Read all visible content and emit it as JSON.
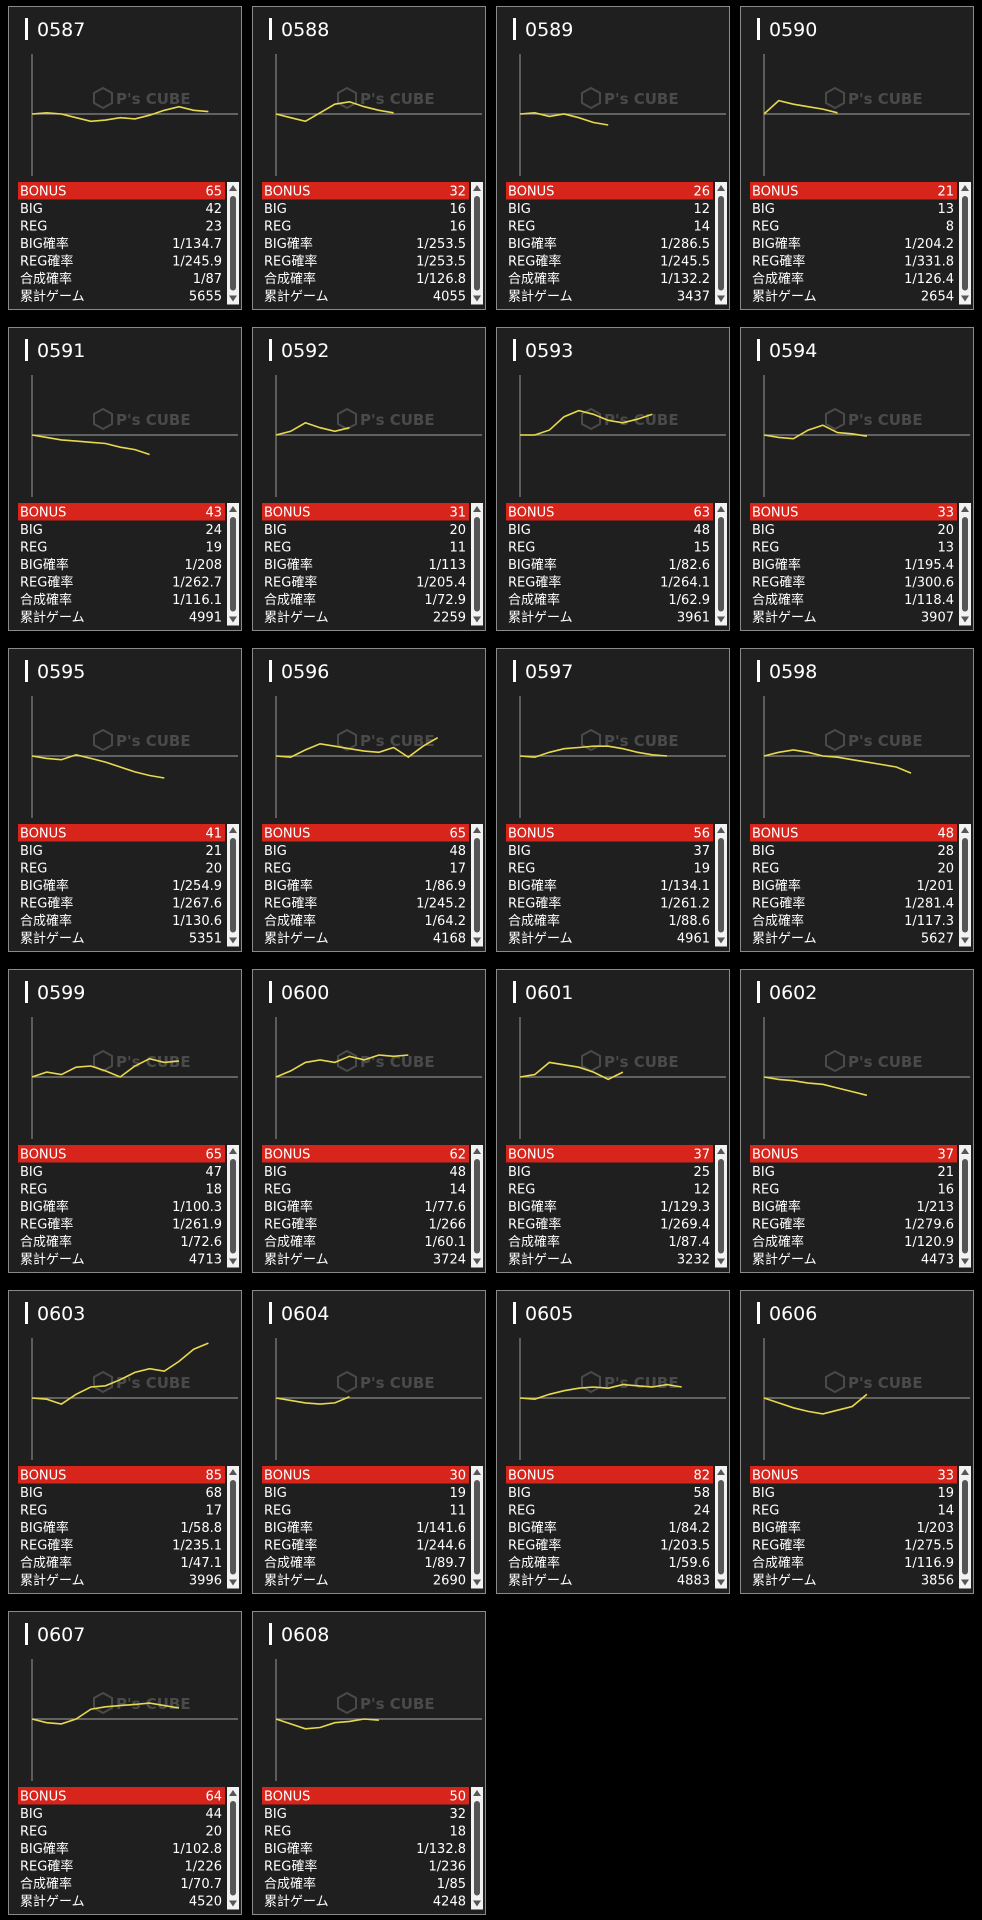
{
  "watermark": "P's CUBE",
  "row_labels": [
    "BONUS",
    "BIG",
    "REG",
    "BIG確率",
    "REG確率",
    "合成確率",
    "累計ゲーム"
  ],
  "machines": [
    {
      "id": "0587",
      "bonus": 65,
      "big": 42,
      "reg": 23,
      "big_rate": "1/134.7",
      "reg_rate": "1/245.9",
      "combined_rate": "1/87",
      "games": 5655,
      "graph": [
        0,
        1,
        0,
        -3,
        -6,
        -5,
        -3,
        -4,
        -1,
        3,
        6,
        3,
        2
      ]
    },
    {
      "id": "0588",
      "bonus": 32,
      "big": 16,
      "reg": 16,
      "big_rate": "1/253.5",
      "reg_rate": "1/253.5",
      "combined_rate": "1/126.8",
      "games": 4055,
      "graph": [
        0,
        -3,
        -6,
        1,
        8,
        10,
        6,
        3,
        1
      ]
    },
    {
      "id": "0589",
      "bonus": 26,
      "big": 12,
      "reg": 14,
      "big_rate": "1/286.5",
      "reg_rate": "1/245.5",
      "combined_rate": "1/132.2",
      "games": 3437,
      "graph": [
        0,
        1,
        -2,
        0,
        -3,
        -7,
        -9
      ]
    },
    {
      "id": "0590",
      "bonus": 21,
      "big": 13,
      "reg": 8,
      "big_rate": "1/204.2",
      "reg_rate": "1/331.8",
      "combined_rate": "1/126.4",
      "games": 2654,
      "graph": [
        0,
        11,
        8,
        6,
        4,
        1
      ]
    },
    {
      "id": "0591",
      "bonus": 43,
      "big": 24,
      "reg": 19,
      "big_rate": "1/208",
      "reg_rate": "1/262.7",
      "combined_rate": "1/116.1",
      "games": 4991,
      "graph": [
        0,
        -2,
        -4,
        -5,
        -6,
        -7,
        -10,
        -12,
        -16
      ]
    },
    {
      "id": "0592",
      "bonus": 31,
      "big": 20,
      "reg": 11,
      "big_rate": "1/113",
      "reg_rate": "1/205.4",
      "combined_rate": "1/72.9",
      "games": 2259,
      "graph": [
        0,
        3,
        10,
        6,
        3,
        6
      ]
    },
    {
      "id": "0593",
      "bonus": 63,
      "big": 48,
      "reg": 15,
      "big_rate": "1/82.6",
      "reg_rate": "1/264.1",
      "combined_rate": "1/62.9",
      "games": 3961,
      "graph": [
        0,
        0,
        4,
        15,
        20,
        17,
        12,
        10,
        13,
        17
      ]
    },
    {
      "id": "0594",
      "bonus": 33,
      "big": 20,
      "reg": 13,
      "big_rate": "1/195.4",
      "reg_rate": "1/300.6",
      "combined_rate": "1/118.4",
      "games": 3907,
      "graph": [
        0,
        -2,
        -3,
        4,
        8,
        2,
        1,
        -1
      ]
    },
    {
      "id": "0595",
      "bonus": 41,
      "big": 21,
      "reg": 20,
      "big_rate": "1/254.9",
      "reg_rate": "1/267.6",
      "combined_rate": "1/130.6",
      "games": 5351,
      "graph": [
        0,
        -2,
        -3,
        1,
        -2,
        -5,
        -9,
        -13,
        -16,
        -18
      ]
    },
    {
      "id": "0596",
      "bonus": 65,
      "big": 48,
      "reg": 17,
      "big_rate": "1/86.9",
      "reg_rate": "1/245.2",
      "combined_rate": "1/64.2",
      "games": 4168,
      "graph": [
        0,
        -1,
        5,
        10,
        8,
        6,
        4,
        3,
        7,
        -1,
        8,
        15
      ]
    },
    {
      "id": "0597",
      "bonus": 56,
      "big": 37,
      "reg": 19,
      "big_rate": "1/134.1",
      "reg_rate": "1/261.2",
      "combined_rate": "1/88.6",
      "games": 4961,
      "graph": [
        0,
        -1,
        3,
        6,
        7,
        8,
        8,
        6,
        3,
        1,
        0
      ]
    },
    {
      "id": "0598",
      "bonus": 48,
      "big": 28,
      "reg": 20,
      "big_rate": "1/201",
      "reg_rate": "1/281.4",
      "combined_rate": "1/117.3",
      "games": 5627,
      "graph": [
        0,
        3,
        5,
        3,
        0,
        -1,
        -3,
        -5,
        -7,
        -9,
        -14
      ]
    },
    {
      "id": "0599",
      "bonus": 65,
      "big": 47,
      "reg": 18,
      "big_rate": "1/100.3",
      "reg_rate": "1/261.9",
      "combined_rate": "1/72.6",
      "games": 4713,
      "graph": [
        0,
        4,
        2,
        8,
        9,
        5,
        0,
        9,
        15,
        12,
        13
      ]
    },
    {
      "id": "0600",
      "bonus": 62,
      "big": 48,
      "reg": 14,
      "big_rate": "1/77.6",
      "reg_rate": "1/266",
      "combined_rate": "1/60.1",
      "games": 3724,
      "graph": [
        0,
        5,
        12,
        14,
        12,
        17,
        14,
        18,
        17,
        18
      ]
    },
    {
      "id": "0601",
      "bonus": 37,
      "big": 25,
      "reg": 12,
      "big_rate": "1/129.3",
      "reg_rate": "1/269.4",
      "combined_rate": "1/87.4",
      "games": 3232,
      "graph": [
        0,
        2,
        12,
        10,
        8,
        4,
        -2,
        4
      ]
    },
    {
      "id": "0602",
      "bonus": 37,
      "big": 21,
      "reg": 16,
      "big_rate": "1/213",
      "reg_rate": "1/279.6",
      "combined_rate": "1/120.9",
      "games": 4473,
      "graph": [
        0,
        -2,
        -3,
        -5,
        -6,
        -9,
        -12,
        -15
      ]
    },
    {
      "id": "0603",
      "bonus": 85,
      "big": 68,
      "reg": 17,
      "big_rate": "1/58.8",
      "reg_rate": "1/235.1",
      "combined_rate": "1/47.1",
      "games": 3996,
      "graph": [
        0,
        -1,
        -5,
        3,
        9,
        10,
        15,
        21,
        24,
        22,
        30,
        40,
        45
      ]
    },
    {
      "id": "0604",
      "bonus": 30,
      "big": 19,
      "reg": 11,
      "big_rate": "1/141.6",
      "reg_rate": "1/244.6",
      "combined_rate": "1/89.7",
      "games": 2690,
      "graph": [
        0,
        -2,
        -4,
        -5,
        -4,
        1
      ]
    },
    {
      "id": "0605",
      "bonus": 82,
      "big": 58,
      "reg": 24,
      "big_rate": "1/84.2",
      "reg_rate": "1/203.5",
      "combined_rate": "1/59.6",
      "games": 4883,
      "graph": [
        0,
        -1,
        3,
        6,
        8,
        9,
        8,
        11,
        10,
        9,
        11,
        9
      ]
    },
    {
      "id": "0606",
      "bonus": 33,
      "big": 19,
      "reg": 14,
      "big_rate": "1/203",
      "reg_rate": "1/275.5",
      "combined_rate": "1/116.9",
      "games": 3856,
      "graph": [
        0,
        -4,
        -8,
        -11,
        -13,
        -10,
        -7,
        3
      ]
    },
    {
      "id": "0607",
      "bonus": 64,
      "big": 44,
      "reg": 20,
      "big_rate": "1/102.8",
      "reg_rate": "1/226",
      "combined_rate": "1/70.7",
      "games": 4520,
      "graph": [
        0,
        -3,
        -4,
        0,
        8,
        10,
        11,
        12,
        13,
        11,
        9
      ]
    },
    {
      "id": "0608",
      "bonus": 50,
      "big": 32,
      "reg": 18,
      "big_rate": "1/132.8",
      "reg_rate": "1/236",
      "combined_rate": "1/85",
      "games": 4248,
      "graph": [
        0,
        -4,
        -8,
        -7,
        -3,
        -2,
        0,
        -1
      ]
    }
  ]
}
